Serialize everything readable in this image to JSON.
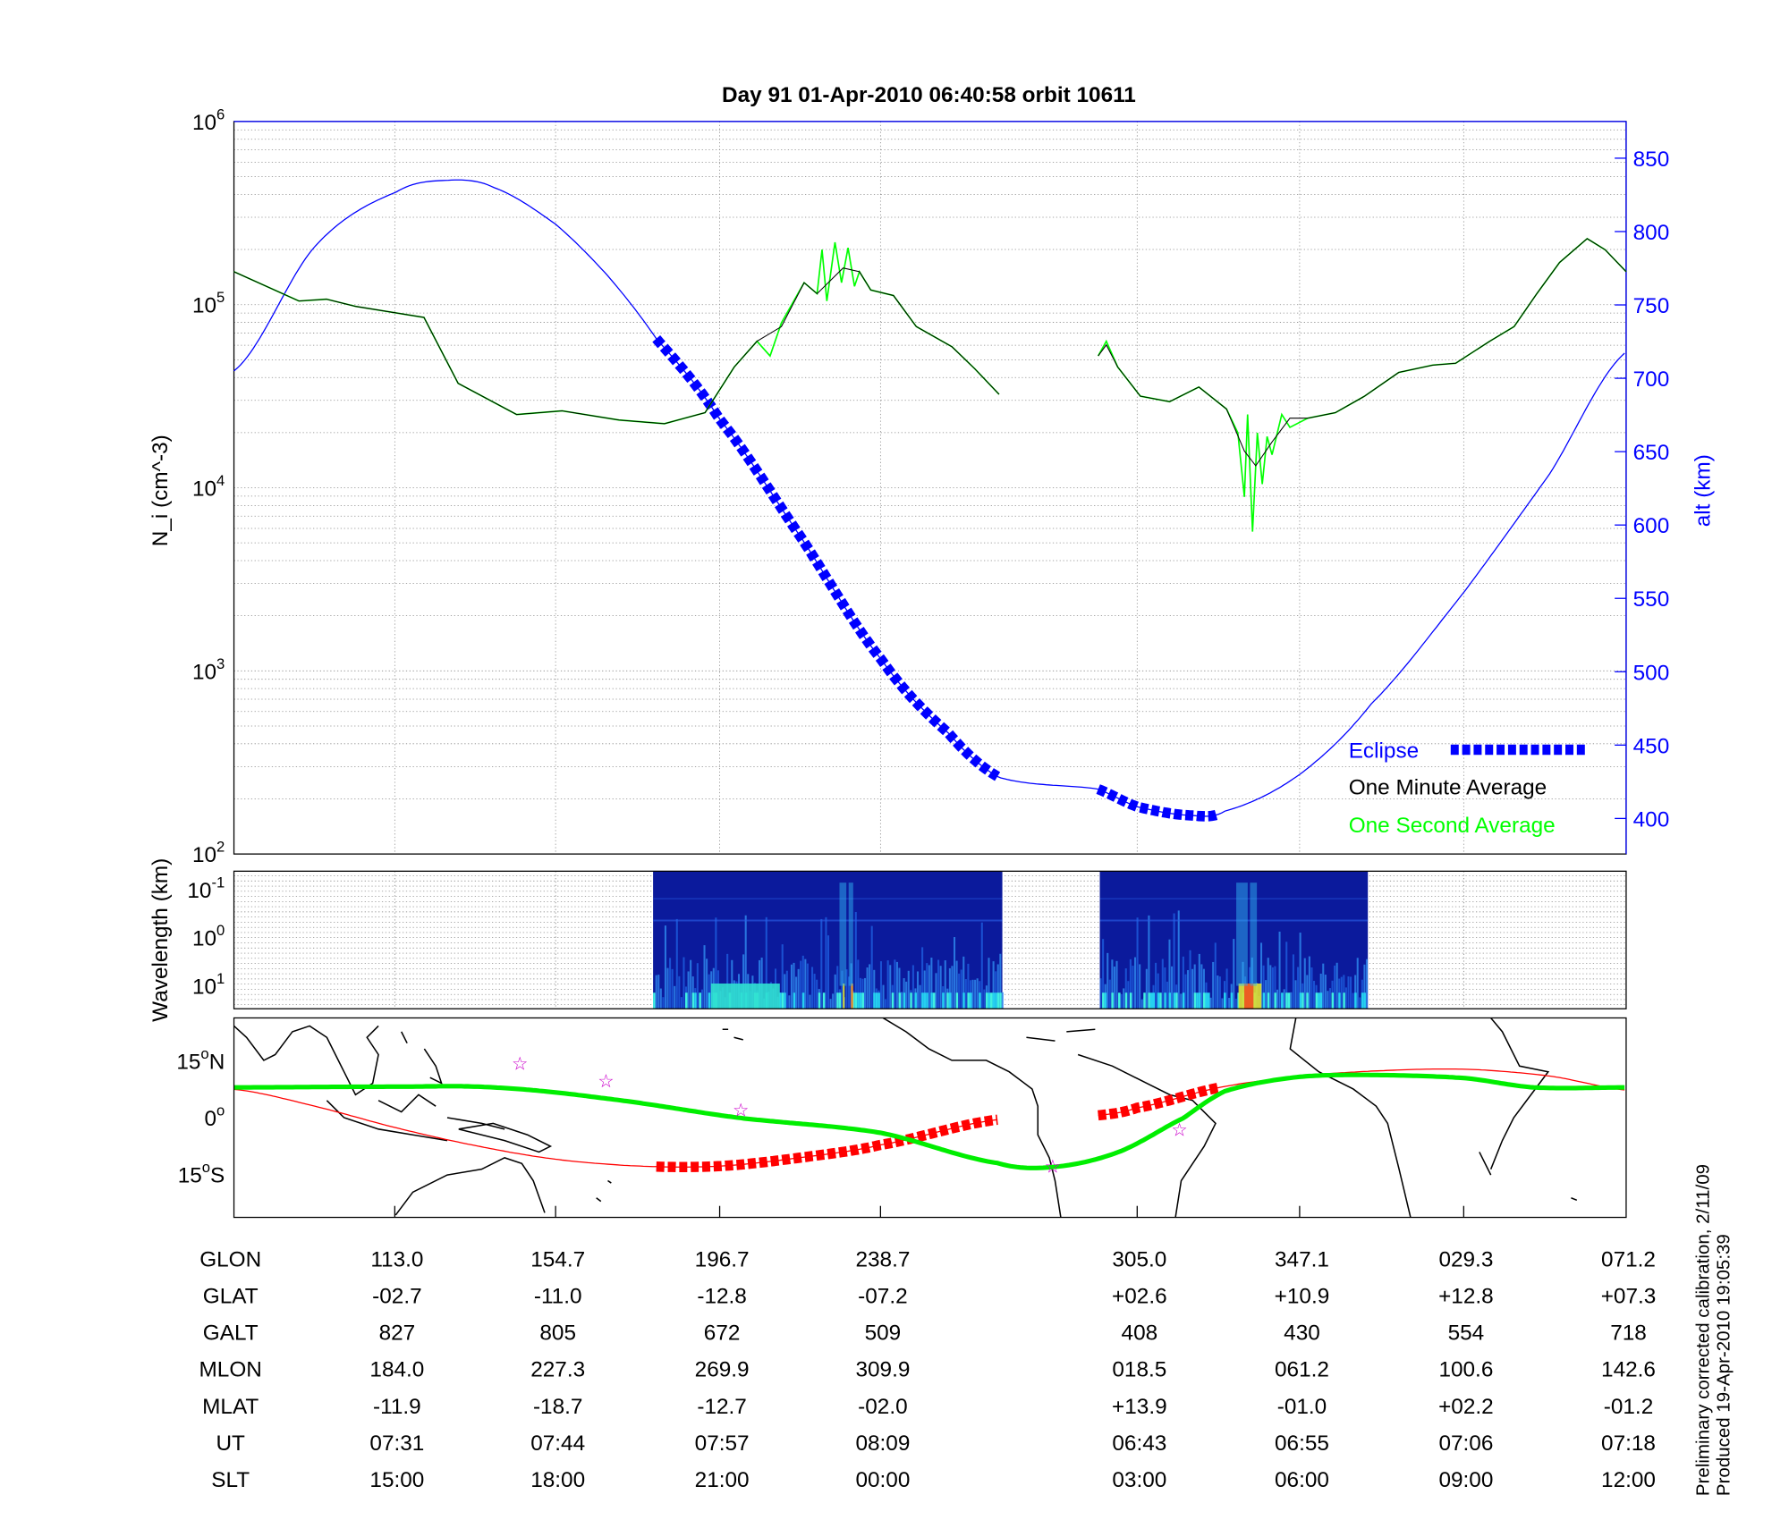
{
  "title": "Day 91  01-Apr-2010 06:40:58   orbit 10611",
  "footnote": {
    "line1": "Preliminary corrected calibration, 2/11/09",
    "line2": "Produced 19-Apr-2010 19:05:39"
  },
  "colors": {
    "eclipse": "#0000ff",
    "minute": "#000000",
    "second": "#00ff00",
    "altitude": "#0000ff",
    "ground_track": "#ff0000",
    "dip_equator": "#00ee00",
    "stars": "#cc00cc"
  },
  "chart_data": [
    {
      "type": "line",
      "name": "density-altitude",
      "ylabel": "N_i (cm^-3)",
      "y2label": "alt (km)",
      "yscale": "log",
      "ylim": [
        100,
        1000000
      ],
      "yticks": [
        {
          "base": "10",
          "exp": "2"
        },
        {
          "base": "10",
          "exp": "3"
        },
        {
          "base": "10",
          "exp": "4"
        },
        {
          "base": "10",
          "exp": "5"
        },
        {
          "base": "10",
          "exp": "6"
        }
      ],
      "y2lim": [
        375,
        875
      ],
      "y2ticks": [
        "400",
        "450",
        "500",
        "550",
        "600",
        "650",
        "700",
        "750",
        "800",
        "850"
      ],
      "xlim": [
        0,
        8.57
      ],
      "x_unit": "table column index",
      "legend": {
        "position": "bottom-right",
        "entries": [
          "Eclipse",
          "One Minute Average",
          "One Second Average"
        ]
      },
      "one_minute_average_log10": [
        [
          [
            0,
            5.18
          ],
          [
            0.4,
            5.02
          ],
          [
            0.57,
            5.03
          ],
          [
            0.75,
            4.99
          ],
          [
            1.17,
            4.93
          ],
          [
            1.38,
            4.57
          ],
          [
            1.74,
            4.4
          ],
          [
            2.02,
            4.42
          ],
          [
            2.37,
            4.37
          ],
          [
            2.65,
            4.35
          ],
          [
            2.9,
            4.41
          ],
          [
            3.08,
            4.66
          ],
          [
            3.22,
            4.8
          ],
          [
            3.37,
            4.88
          ],
          [
            3.51,
            5.12
          ],
          [
            3.59,
            5.06
          ],
          [
            3.75,
            5.2
          ],
          [
            3.85,
            5.18
          ],
          [
            3.92,
            5.08
          ],
          [
            4.06,
            5.05
          ],
          [
            4.2,
            4.88
          ],
          [
            4.42,
            4.77
          ],
          [
            4.56,
            4.65
          ],
          [
            4.71,
            4.51
          ]
        ],
        [
          [
            5.32,
            4.72
          ],
          [
            5.37,
            4.78
          ],
          [
            5.44,
            4.66
          ],
          [
            5.58,
            4.5
          ],
          [
            5.76,
            4.47
          ],
          [
            5.94,
            4.55
          ],
          [
            6.11,
            4.43
          ],
          [
            6.22,
            4.2
          ],
          [
            6.29,
            4.12
          ],
          [
            6.39,
            4.25
          ],
          [
            6.5,
            4.38
          ],
          [
            6.61,
            4.38
          ],
          [
            6.78,
            4.41
          ],
          [
            6.96,
            4.5
          ],
          [
            7.17,
            4.63
          ],
          [
            7.38,
            4.67
          ],
          [
            7.52,
            4.68
          ],
          [
            7.73,
            4.8
          ],
          [
            7.88,
            4.88
          ],
          [
            8.02,
            5.06
          ],
          [
            8.16,
            5.23
          ],
          [
            8.33,
            5.36
          ],
          [
            8.44,
            5.3
          ],
          [
            8.57,
            5.18
          ]
        ]
      ],
      "one_second_average_log10": [
        [
          [
            0,
            5.18
          ],
          [
            0.4,
            5.02
          ],
          [
            0.57,
            5.03
          ],
          [
            0.75,
            4.99
          ],
          [
            1.17,
            4.93
          ],
          [
            1.38,
            4.57
          ],
          [
            1.74,
            4.4
          ],
          [
            2.02,
            4.42
          ],
          [
            2.37,
            4.37
          ],
          [
            2.65,
            4.35
          ],
          [
            2.9,
            4.41
          ],
          [
            3.08,
            4.66
          ],
          [
            3.22,
            4.8
          ],
          [
            3.3,
            4.72
          ],
          [
            3.37,
            4.9
          ],
          [
            3.51,
            5.12
          ],
          [
            3.59,
            5.06
          ],
          [
            3.62,
            5.3
          ],
          [
            3.65,
            5.02
          ],
          [
            3.7,
            5.34
          ],
          [
            3.74,
            5.12
          ],
          [
            3.78,
            5.31
          ],
          [
            3.82,
            5.1
          ],
          [
            3.85,
            5.18
          ],
          [
            3.92,
            5.08
          ],
          [
            4.06,
            5.05
          ],
          [
            4.2,
            4.88
          ],
          [
            4.42,
            4.77
          ],
          [
            4.56,
            4.65
          ],
          [
            4.71,
            4.51
          ]
        ],
        [
          [
            5.32,
            4.72
          ],
          [
            5.37,
            4.8
          ],
          [
            5.44,
            4.66
          ],
          [
            5.58,
            4.5
          ],
          [
            5.76,
            4.47
          ],
          [
            5.94,
            4.55
          ],
          [
            6.11,
            4.43
          ],
          [
            6.18,
            4.3
          ],
          [
            6.22,
            3.95
          ],
          [
            6.24,
            4.4
          ],
          [
            6.27,
            3.76
          ],
          [
            6.3,
            4.3
          ],
          [
            6.33,
            4.02
          ],
          [
            6.36,
            4.28
          ],
          [
            6.39,
            4.18
          ],
          [
            6.45,
            4.4
          ],
          [
            6.5,
            4.33
          ],
          [
            6.61,
            4.38
          ],
          [
            6.78,
            4.41
          ],
          [
            6.96,
            4.5
          ],
          [
            7.17,
            4.63
          ],
          [
            7.38,
            4.67
          ],
          [
            7.52,
            4.68
          ],
          [
            7.73,
            4.8
          ],
          [
            7.88,
            4.88
          ],
          [
            8.02,
            5.06
          ],
          [
            8.16,
            5.23
          ],
          [
            8.33,
            5.36
          ],
          [
            8.44,
            5.3
          ],
          [
            8.57,
            5.18
          ]
        ]
      ],
      "altitude_km": [
        [
          0,
          705
        ],
        [
          0.5,
          790
        ],
        [
          1.0,
          827
        ],
        [
          1.33,
          835
        ],
        [
          1.6,
          830
        ],
        [
          1.98,
          805
        ],
        [
          2.3,
          770
        ],
        [
          2.6,
          727
        ],
        [
          2.99,
          672
        ],
        [
          3.5,
          590
        ],
        [
          3.98,
          509
        ],
        [
          4.4,
          458
        ],
        [
          4.71,
          428
        ],
        [
          5.32,
          420
        ],
        [
          5.56,
          408
        ],
        [
          5.9,
          402
        ],
        [
          6.1,
          405
        ],
        [
          6.56,
          430
        ],
        [
          7.0,
          478
        ],
        [
          7.57,
          554
        ],
        [
          8.1,
          635
        ],
        [
          8.57,
          718
        ]
      ],
      "eclipse_ranges": [
        [
          2.6,
          4.71
        ],
        [
          5.32,
          6.07
        ]
      ]
    },
    {
      "type": "heatmap",
      "name": "spectrogram",
      "ylabel": "Wavelength (km)",
      "yticks": [
        {
          "base": "10",
          "exp": "-1"
        },
        {
          "base": "10",
          "exp": "0"
        },
        {
          "base": "10",
          "exp": "1"
        }
      ],
      "data_ranges": [
        [
          2.58,
          4.73
        ],
        [
          5.33,
          6.98
        ]
      ]
    },
    {
      "type": "line",
      "name": "ground-track-map",
      "yticks": [
        {
          "deg": "15",
          "sfx": "N"
        },
        {
          "deg": "0",
          "sfx": ""
        },
        {
          "deg": "15",
          "sfx": "S"
        }
      ],
      "ylim": [
        -26,
        26.5
      ],
      "ground_track_lat": [
        [
          0,
          7.5
        ],
        [
          0.5,
          3
        ],
        [
          1,
          -2.7
        ],
        [
          1.5,
          -7.5
        ],
        [
          1.98,
          -11
        ],
        [
          2.5,
          -12.8
        ],
        [
          2.99,
          -12.8
        ],
        [
          3.5,
          -10.5
        ],
        [
          3.98,
          -7.2
        ],
        [
          4.71,
          -0.5
        ],
        null,
        [
          5.32,
          0.6
        ],
        [
          5.56,
          2.6
        ],
        [
          6.07,
          8
        ],
        [
          6.56,
          10.9
        ],
        [
          7.0,
          12.3
        ],
        [
          7.57,
          12.8
        ],
        [
          8.1,
          11
        ],
        [
          8.57,
          7.3
        ]
      ],
      "dip_equator_lat": [
        [
          0,
          8
        ],
        [
          1,
          8.2
        ],
        [
          1.6,
          8
        ],
        [
          2.3,
          5
        ],
        [
          3.1,
          0
        ],
        [
          3.98,
          -4
        ],
        [
          4.7,
          -12
        ],
        [
          5.05,
          -13
        ],
        [
          5.45,
          -9
        ],
        [
          5.85,
          0
        ],
        [
          6.1,
          7
        ],
        [
          6.5,
          10.5
        ],
        [
          6.9,
          11.3
        ],
        [
          7.57,
          10.5
        ],
        [
          8.0,
          8
        ],
        [
          8.57,
          8
        ]
      ],
      "stars": [
        [
          1.76,
          14.5
        ],
        [
          2.29,
          9.8
        ],
        [
          3.12,
          2.2
        ],
        [
          5.04,
          -12.7
        ],
        [
          5.82,
          -3
        ]
      ],
      "eclipse_ranges": [
        [
          2.6,
          4.71
        ],
        [
          5.32,
          6.07
        ]
      ]
    }
  ],
  "table": {
    "row_labels": [
      "GLON",
      "GLAT",
      "GALT",
      "MLON",
      "MLAT",
      "UT",
      "SLT"
    ],
    "columns": [
      {
        "x": 0.99,
        "values": [
          "113.0",
          "-02.7",
          "827",
          "184.0",
          "-11.9",
          "07:31",
          "15:00"
        ]
      },
      {
        "x": 1.98,
        "values": [
          "154.7",
          "-11.0",
          "805",
          "227.3",
          "-18.7",
          "07:44",
          "18:00"
        ]
      },
      {
        "x": 2.99,
        "values": [
          "196.7",
          "-12.8",
          "672",
          "269.9",
          "-12.7",
          "07:57",
          "21:00"
        ]
      },
      {
        "x": 3.98,
        "values": [
          "238.7",
          "-07.2",
          "509",
          "309.9",
          "-02.0",
          "08:09",
          "00:00"
        ]
      },
      {
        "x": 5.56,
        "values": [
          "305.0",
          "+02.6",
          "408",
          "018.5",
          "+13.9",
          "06:43",
          "03:00"
        ]
      },
      {
        "x": 6.56,
        "values": [
          "347.1",
          "+10.9",
          "430",
          "061.2",
          "-01.0",
          "06:55",
          "06:00"
        ]
      },
      {
        "x": 7.57,
        "values": [
          "029.3",
          "+12.8",
          "554",
          "100.6",
          "+02.2",
          "07:06",
          "09:00"
        ]
      },
      {
        "x": 8.57,
        "values": [
          "071.2",
          "+07.3",
          "718",
          "142.6",
          "-01.2",
          "07:18",
          "12:00"
        ]
      }
    ]
  }
}
